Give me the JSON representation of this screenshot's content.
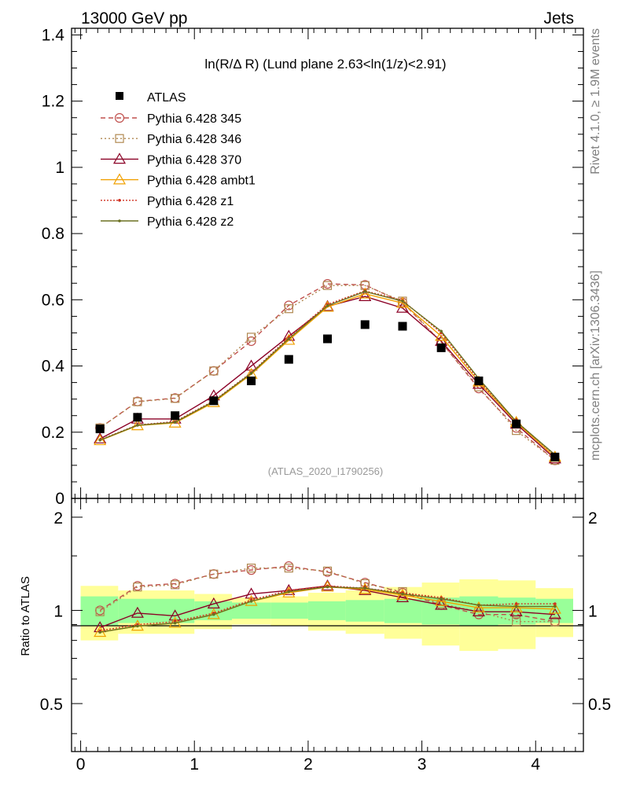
{
  "header": {
    "left": "13000 GeV pp",
    "right": "Jets"
  },
  "side_labels": {
    "rivet": "Rivet 4.1.0, ≥ 1.9M events",
    "mcplots": "mcplots.cern.ch [arXiv:1306.3436]"
  },
  "chart_data": {
    "type": "line",
    "title": "ln(R/Δ R) (Lund plane 2.63<ln(1/z)<2.91)",
    "watermark": "(ATLAS_2020_I1790256)",
    "xlabel": "",
    "ylabel": "",
    "ratio_ylabel": "Ratio to ATLAS",
    "xlim": [
      -0.08,
      4.42
    ],
    "ylim": [
      0,
      1.42
    ],
    "ratio_ylim": [
      0.35,
      2.3
    ],
    "x_ticks": [
      "0",
      "1",
      "2",
      "3",
      "4"
    ],
    "y_ticks": [
      "0",
      "0.2",
      "0.4",
      "0.6",
      "0.8",
      "1",
      "1.2",
      "1.4"
    ],
    "ratio_ticks": [
      "0.5",
      "1",
      "2"
    ],
    "x": [
      0.17,
      0.5,
      0.83,
      1.17,
      1.5,
      1.83,
      2.17,
      2.5,
      2.83,
      3.17,
      3.5,
      3.83,
      4.17
    ],
    "x_edges": [
      0,
      0.33,
      0.67,
      1.0,
      1.33,
      1.67,
      2.0,
      2.33,
      2.67,
      3.0,
      3.33,
      3.67,
      4.0,
      4.33
    ],
    "data": {
      "name": "ATLAS",
      "values": [
        0.21,
        0.245,
        0.25,
        0.295,
        0.355,
        0.42,
        0.482,
        0.525,
        0.52,
        0.455,
        0.355,
        0.225,
        0.125
      ],
      "band_inner_rel": [
        0.11,
        0.09,
        0.09,
        0.07,
        0.06,
        0.06,
        0.07,
        0.08,
        0.09,
        0.1,
        0.11,
        0.1,
        0.09
      ],
      "band_outer_rel": [
        0.2,
        0.16,
        0.16,
        0.13,
        0.1,
        0.11,
        0.14,
        0.16,
        0.19,
        0.23,
        0.26,
        0.25,
        0.18
      ]
    },
    "series": [
      {
        "name": "Pythia 6.428 345",
        "color": "#c0504d",
        "dash": "6,4",
        "marker": "circle",
        "values": [
          0.213,
          0.293,
          0.303,
          0.385,
          0.475,
          0.583,
          0.648,
          0.645,
          0.592,
          0.472,
          0.332,
          0.213,
          0.115
        ],
        "ratio": [
          1.0,
          1.2,
          1.22,
          1.31,
          1.35,
          1.39,
          1.33,
          1.23,
          1.14,
          1.04,
          0.97,
          0.97,
          0.92
        ]
      },
      {
        "name": "Pythia 6.428 346",
        "color": "#b08850",
        "dash": "2,3",
        "marker": "square",
        "values": [
          0.213,
          0.292,
          0.302,
          0.385,
          0.487,
          0.573,
          0.643,
          0.643,
          0.596,
          0.472,
          0.337,
          0.205,
          0.115
        ],
        "ratio": [
          0.99,
          1.19,
          1.21,
          1.31,
          1.37,
          1.37,
          1.34,
          1.22,
          1.15,
          1.05,
          0.99,
          0.92,
          0.92
        ]
      },
      {
        "name": "Pythia 6.428 370",
        "color": "#8b0026",
        "dash": "",
        "marker": "triangle",
        "values": [
          0.18,
          0.24,
          0.24,
          0.31,
          0.4,
          0.49,
          0.58,
          0.61,
          0.575,
          0.475,
          0.345,
          0.225,
          0.12
        ],
        "ratio": [
          0.88,
          0.98,
          0.96,
          1.05,
          1.13,
          1.16,
          1.2,
          1.16,
          1.1,
          1.04,
          0.99,
          0.99,
          0.97
        ]
      },
      {
        "name": "Pythia 6.428 ambt1",
        "color": "#f0a000",
        "dash": "",
        "marker": "triangle",
        "values": [
          0.175,
          0.22,
          0.228,
          0.29,
          0.375,
          0.478,
          0.578,
          0.618,
          0.59,
          0.49,
          0.352,
          0.23,
          0.125
        ],
        "ratio": [
          0.85,
          0.89,
          0.91,
          0.97,
          1.07,
          1.14,
          1.19,
          1.17,
          1.12,
          1.07,
          1.02,
          1.02,
          1.01
        ]
      },
      {
        "name": "Pythia 6.428 z1",
        "color": "#d03020",
        "dash": "2,2",
        "marker": "dot",
        "values": [
          0.177,
          0.222,
          0.232,
          0.295,
          0.38,
          0.486,
          0.586,
          0.627,
          0.598,
          0.5,
          0.357,
          0.233,
          0.13
        ],
        "ratio": [
          0.86,
          0.9,
          0.92,
          0.98,
          1.08,
          1.16,
          1.2,
          1.18,
          1.14,
          1.1,
          1.04,
          1.05,
          1.05
        ]
      },
      {
        "name": "Pythia 6.428 z2",
        "color": "#6b7020",
        "dash": "",
        "marker": "dot",
        "values": [
          0.176,
          0.221,
          0.23,
          0.293,
          0.378,
          0.482,
          0.582,
          0.625,
          0.596,
          0.505,
          0.362,
          0.232,
          0.132
        ],
        "ratio": [
          0.85,
          0.89,
          0.91,
          0.97,
          1.07,
          1.15,
          1.19,
          1.18,
          1.13,
          1.09,
          1.04,
          1.03,
          1.03
        ]
      }
    ]
  }
}
